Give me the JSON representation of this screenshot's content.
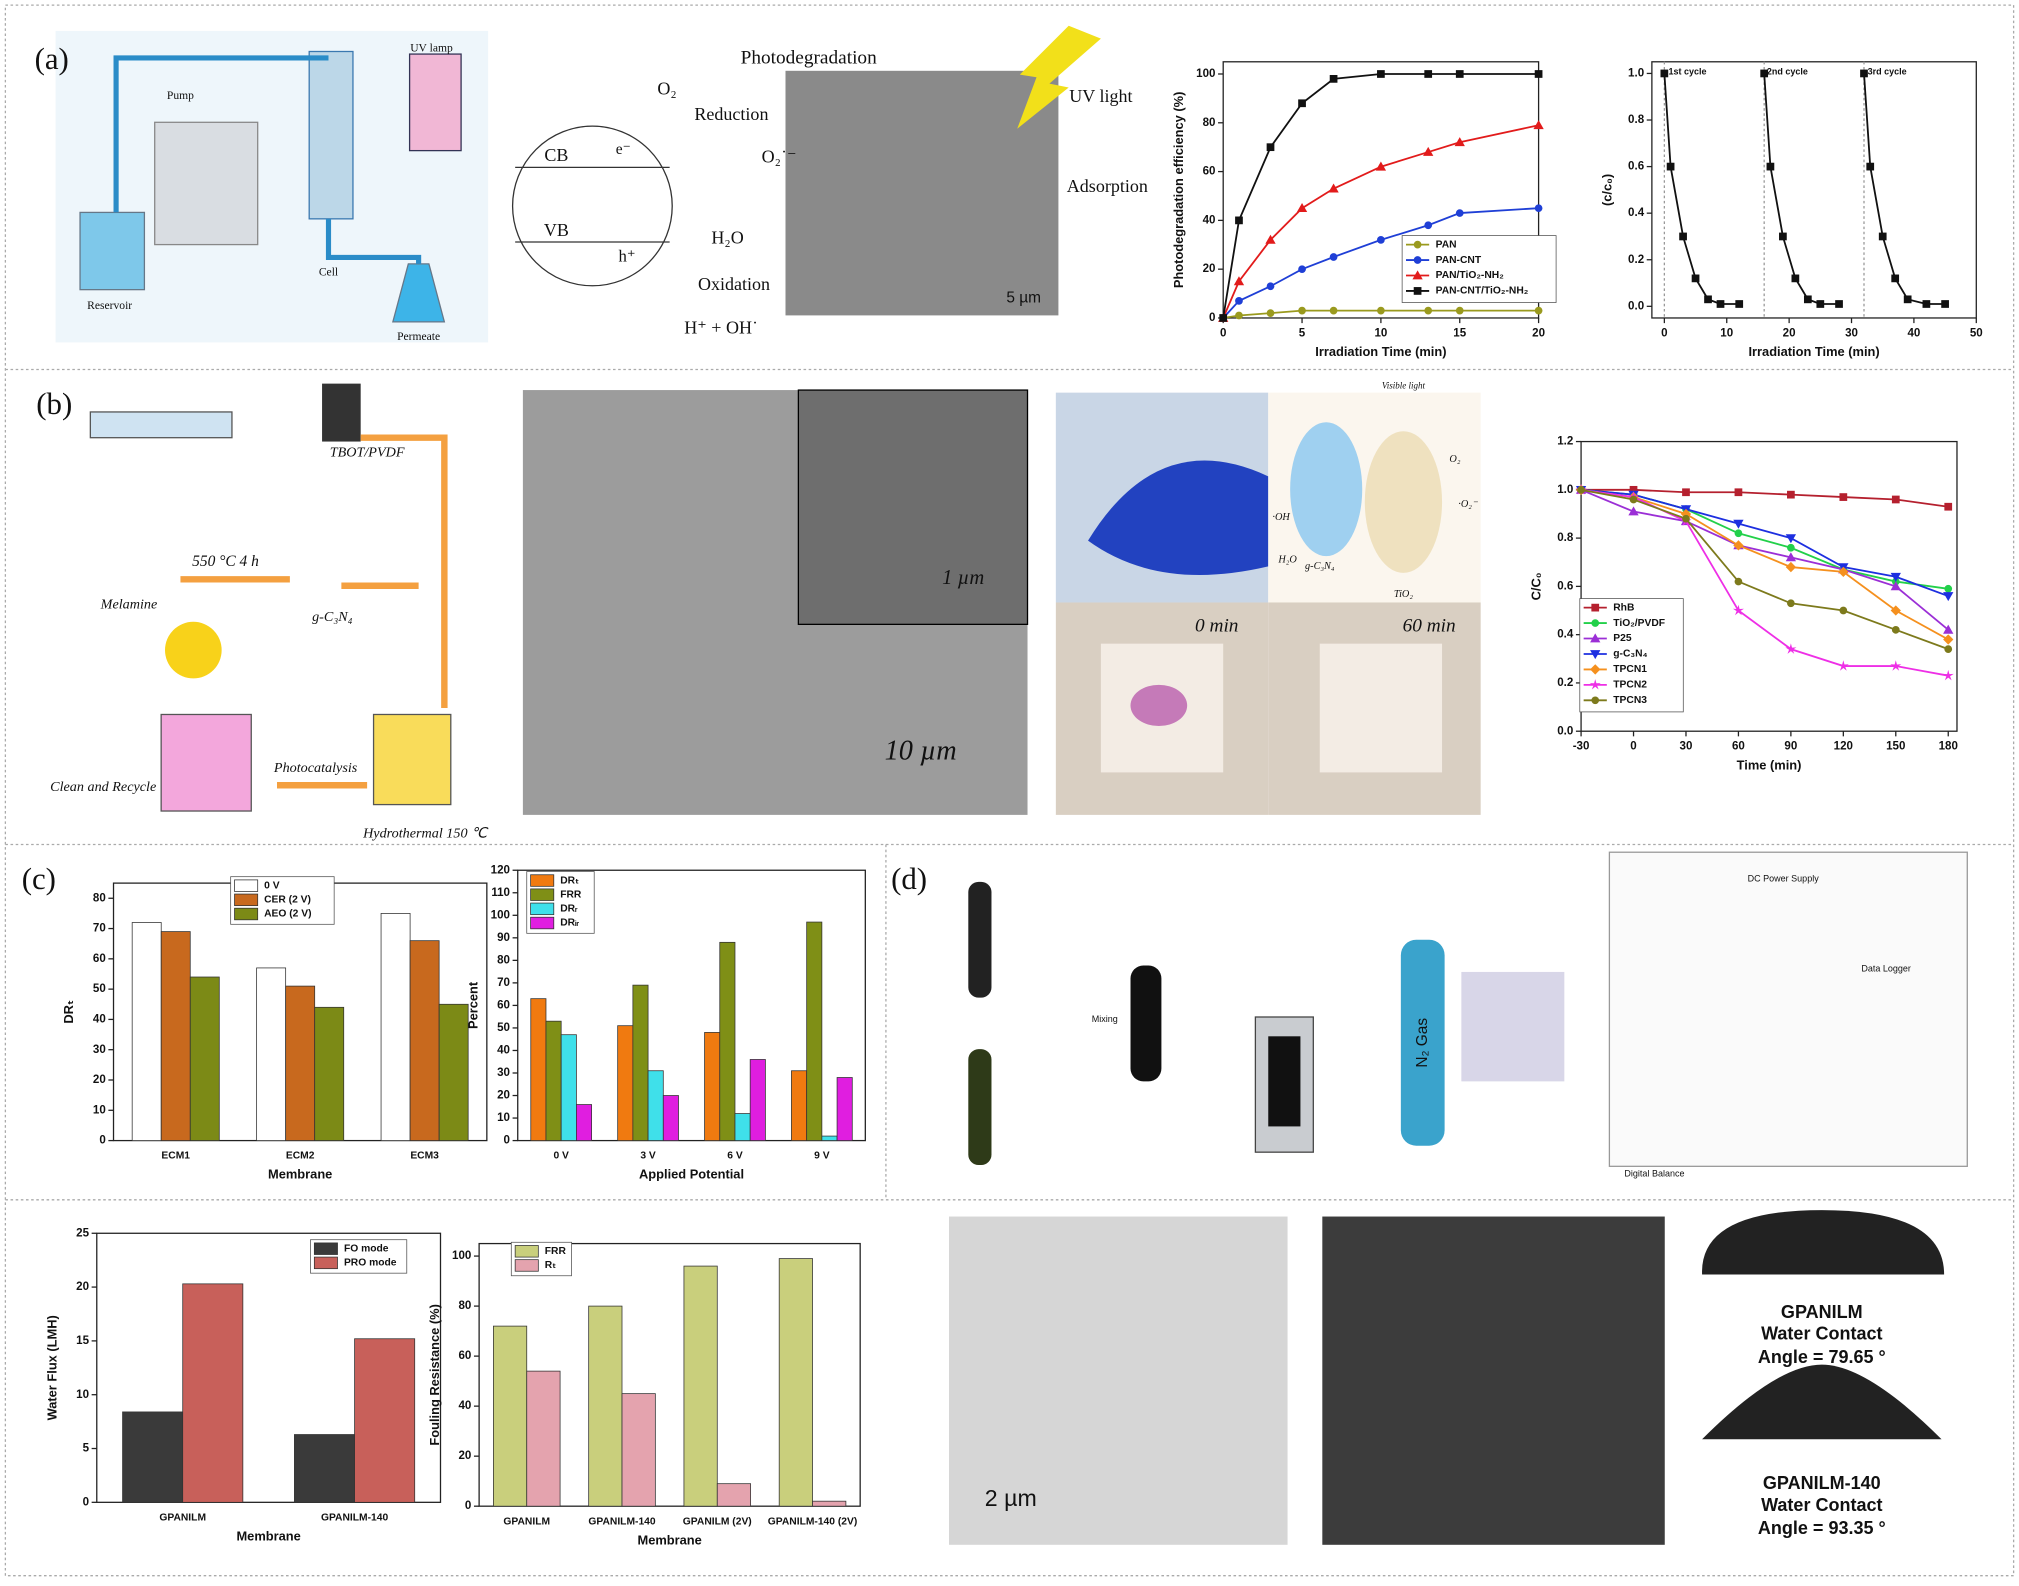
{
  "labels": [
    "(a)",
    "(b)",
    "(c)",
    "(d)"
  ],
  "a": [
    "Pump",
    "UV lamp",
    "Cell",
    "Reservoir",
    "Permeate",
    "Photodegradation",
    "O₂",
    "Reduction",
    "CB",
    "e⁻",
    "O₂˙⁻",
    "VB",
    "h⁺",
    "H₂O",
    "Oxidation",
    "H⁺ + OH˙",
    "UV light",
    "Adsorption",
    "5 µm"
  ],
  "b": [
    "TBOT/PVDF",
    "Melamine",
    "550 °C 4 h",
    "g-C₃N₄",
    "Clean and Recycle",
    "Photocatalysis",
    "Hydrothermal 150 ℃",
    "1 µm",
    "10 µm",
    "0 min",
    "60 min",
    "Visible light",
    "g-C₃N₄",
    "TiO₂",
    "·OH",
    "H₂O",
    "O₂",
    "·O₂⁻"
  ],
  "d": [
    "N₂ Gas",
    "Mixing",
    "2 µm",
    "GPANILM",
    "Water Contact",
    "Angle = 79.65 °",
    "GPANILM-140",
    "Water Contact",
    "Angle = 93.35 °",
    "DC Power Supply",
    "Data Logger",
    "Digital Balance"
  ],
  "chart_data": [
    {
      "type": "line",
      "x_label": "Irradiation Time (min)",
      "y_label": "Photodegradation efficiency (%)",
      "x": [
        0,
        1,
        3,
        5,
        7,
        10,
        13,
        15,
        20
      ],
      "xlim": [
        0,
        20
      ],
      "xticks": [
        0,
        5,
        10,
        15,
        20
      ],
      "ylim": [
        0,
        105
      ],
      "yticks": [
        0,
        20,
        40,
        60,
        80,
        100
      ],
      "series": [
        {
          "name": "PAN",
          "color": "#9a9a1e",
          "marker": "circle",
          "values": [
            0,
            1,
            2,
            3,
            3,
            3,
            3,
            3,
            3
          ]
        },
        {
          "name": "PAN-CNT",
          "color": "#1f3fd6",
          "marker": "circle",
          "values": [
            0,
            7,
            13,
            20,
            25,
            32,
            38,
            43,
            45
          ]
        },
        {
          "name": "PAN/TiO₂-NH₂",
          "color": "#e21b1b",
          "marker": "triangle",
          "values": [
            0,
            15,
            32,
            45,
            53,
            62,
            68,
            72,
            79
          ]
        },
        {
          "name": "PAN-CNT/TiO₂-NH₂",
          "color": "#111111",
          "marker": "square",
          "values": [
            0,
            40,
            70,
            88,
            98,
            100,
            100,
            100,
            100
          ]
        }
      ]
    },
    {
      "type": "line",
      "x_label": "Irradiation Time (min)",
      "y_label": "(c/c₀)",
      "annotations": [
        "1st cycle",
        "2nd cycle",
        "3rd cycle"
      ],
      "xlim": [
        -2,
        50
      ],
      "xticks": [
        0,
        10,
        20,
        30,
        40,
        50
      ],
      "ylim": [
        -0.05,
        1.05
      ],
      "yticks": [
        {
          "value": 0,
          "label": "0.0"
        },
        0.2,
        0.4,
        0.6,
        0.8,
        {
          "value": 1,
          "label": "1.0"
        }
      ],
      "series": [
        {
          "color": "#111111",
          "marker": "square",
          "x": [
            0,
            1,
            3,
            5,
            7,
            9,
            12
          ],
          "values": [
            1,
            0.6,
            0.3,
            0.12,
            0.03,
            0.01,
            0.01
          ]
        },
        {
          "color": "#111111",
          "marker": "square",
          "x": [
            16,
            17,
            19,
            21,
            23,
            25,
            28
          ],
          "values": [
            1,
            0.6,
            0.3,
            0.12,
            0.03,
            0.01,
            0.01
          ]
        },
        {
          "color": "#111111",
          "marker": "square",
          "x": [
            32,
            33,
            35,
            37,
            39,
            42,
            45
          ],
          "values": [
            1,
            0.6,
            0.3,
            0.12,
            0.03,
            0.01,
            0.01
          ]
        }
      ]
    },
    {
      "type": "line",
      "x_label": "Time (min)",
      "y_label": "C/C₀",
      "x": [
        -30,
        0,
        30,
        60,
        90,
        120,
        150,
        180
      ],
      "xlim": [
        -30,
        185
      ],
      "xticks": [
        -30,
        0,
        30,
        60,
        90,
        120,
        150,
        180
      ],
      "ylim": [
        0,
        1.2
      ],
      "yticks": [
        {
          "value": 0,
          "label": "0.0"
        },
        0.2,
        0.4,
        0.6,
        0.8,
        {
          "value": 1,
          "label": "1.0"
        },
        1.2
      ],
      "series": [
        {
          "name": "RhB",
          "color": "#b5202e",
          "marker": "square",
          "values": [
            1,
            1,
            0.99,
            0.99,
            0.98,
            0.97,
            0.96,
            0.93
          ]
        },
        {
          "name": "TiO₂/PVDF",
          "color": "#22d04a",
          "marker": "circle",
          "values": [
            1,
            0.98,
            0.92,
            0.82,
            0.76,
            0.67,
            0.62,
            0.59
          ]
        },
        {
          "name": "P25",
          "color": "#9b2fd6",
          "marker": "triangle",
          "values": [
            1,
            0.91,
            0.87,
            0.77,
            0.72,
            0.67,
            0.6,
            0.42
          ]
        },
        {
          "name": "g-C₃N₄",
          "color": "#1d2fe0",
          "marker": "triangle-down",
          "values": [
            1,
            0.98,
            0.92,
            0.86,
            0.8,
            0.68,
            0.64,
            0.56
          ]
        },
        {
          "name": "TPCN1",
          "color": "#f5901e",
          "marker": "diamond",
          "values": [
            1,
            0.97,
            0.9,
            0.77,
            0.68,
            0.66,
            0.5,
            0.38
          ]
        },
        {
          "name": "TPCN2",
          "color": "#ee2fe6",
          "marker": "star",
          "values": [
            1,
            0.97,
            0.87,
            0.5,
            0.34,
            0.27,
            0.27,
            0.23
          ]
        },
        {
          "name": "TPCN3",
          "color": "#7d7a1c",
          "marker": "circle",
          "values": [
            1,
            0.96,
            0.88,
            0.62,
            0.53,
            0.5,
            0.42,
            0.34
          ]
        }
      ]
    },
    {
      "type": "bar",
      "x_label": "Membrane",
      "y_label": "DRₜ",
      "categories": [
        "ECM1",
        "ECM2",
        "ECM3"
      ],
      "ylim": [
        0,
        85
      ],
      "yticks": [
        0,
        10,
        20,
        30,
        40,
        50,
        60,
        70,
        80
      ],
      "series": [
        {
          "name": "0 V",
          "color": "#ffffff",
          "values": [
            72,
            57,
            75
          ]
        },
        {
          "name": "CER (2 V)",
          "color": "#c8691e",
          "values": [
            69,
            51,
            66
          ]
        },
        {
          "name": "AEO (2 V)",
          "color": "#7c8a16",
          "values": [
            54,
            44,
            45
          ]
        }
      ]
    },
    {
      "type": "bar",
      "x_label": "Applied Potential",
      "y_label": "Percent",
      "categories": [
        "0 V",
        "3 V",
        "6 V",
        "9 V"
      ],
      "ylim": [
        0,
        120
      ],
      "yticks": [
        0,
        10,
        20,
        30,
        40,
        50,
        60,
        70,
        80,
        90,
        100,
        110,
        120
      ],
      "series": [
        {
          "name": "DRₜ",
          "color": "#f07a10",
          "values": [
            63,
            51,
            48,
            31
          ]
        },
        {
          "name": "FRR",
          "color": "#7f8f16",
          "values": [
            53,
            69,
            88,
            97
          ]
        },
        {
          "name": "DRᵣ",
          "color": "#3fe0ea",
          "values": [
            47,
            31,
            12,
            2
          ]
        },
        {
          "name": "DRᵢᵣ",
          "color": "#e01ee0",
          "values": [
            16,
            20,
            36,
            28
          ]
        }
      ]
    },
    {
      "type": "bar",
      "x_label": "Membrane",
      "y_label": "Water Flux (LMH)",
      "categories": [
        "GPANILM",
        "GPANILM-140"
      ],
      "ylim": [
        0,
        25
      ],
      "yticks": [
        0,
        5,
        10,
        15,
        20,
        25
      ],
      "series": [
        {
          "name": "FO mode",
          "color": "#3a3a3a",
          "values": [
            8.4,
            6.3
          ]
        },
        {
          "name": "PRO mode",
          "color": "#c8605a",
          "values": [
            20.3,
            15.2
          ]
        }
      ]
    },
    {
      "type": "bar",
      "x_label": "Membrane",
      "y_label": "Fouling Resistance (%)",
      "categories": [
        "GPANILM",
        "GPANILM-140",
        "GPANILM (2V)",
        "GPANILM-140 (2V)"
      ],
      "ylim": [
        0,
        105
      ],
      "yticks": [
        0,
        20,
        40,
        60,
        80,
        100
      ],
      "series": [
        {
          "name": "FRR",
          "color": "#c9cf7c",
          "values": [
            72,
            80,
            96,
            99
          ]
        },
        {
          "name": "Rₜ",
          "color": "#e4a3ae",
          "values": [
            54,
            45,
            9,
            2
          ]
        }
      ]
    }
  ]
}
